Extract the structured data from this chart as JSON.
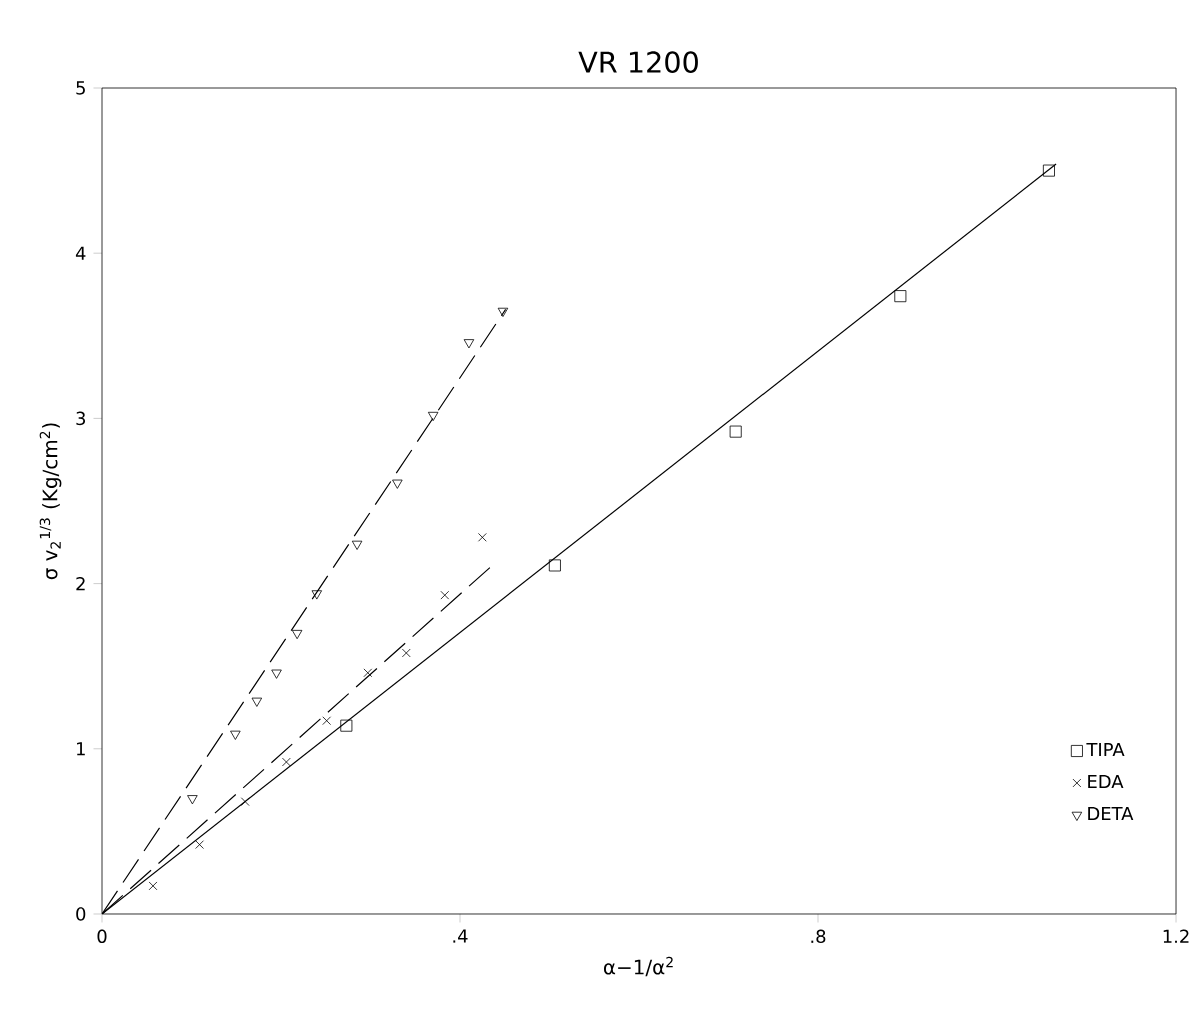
{
  "chart_data": {
    "type": "scatter",
    "title": "VR 1200",
    "xlabel": "α−1/α$^{2}$",
    "ylabel": "σ v$_{2}$$^{1/3}$   (Kg/cm$^{2}$)",
    "xlim": [
      0,
      1.2
    ],
    "ylim": [
      0,
      5
    ],
    "xticks": [
      0,
      {
        "value": 0.4,
        "label": ".4"
      },
      {
        "value": 0.8,
        "label": ".8"
      },
      1.2
    ],
    "yticks": [
      0,
      1,
      2,
      3,
      4,
      5
    ],
    "legend": "bottom right",
    "series": [
      {
        "name": "TIPA",
        "color": "#000000",
        "marker": "square",
        "x": [
          0.273,
          0.506,
          0.708,
          0.892,
          1.058
        ],
        "values": [
          1.14,
          2.11,
          2.92,
          3.74,
          4.5
        ]
      },
      {
        "name": "EDA",
        "color": "#000000",
        "marker": "cross",
        "x": [
          0.057,
          0.109,
          0.16,
          0.206,
          0.251,
          0.297,
          0.34,
          0.383,
          0.425
        ],
        "values": [
          0.17,
          0.42,
          0.68,
          0.92,
          1.17,
          1.46,
          1.58,
          1.93,
          2.28
        ]
      },
      {
        "name": "DETA",
        "color": "#000000",
        "marker": "triangle",
        "x": [
          0.101,
          0.149,
          0.173,
          0.195,
          0.218,
          0.24,
          0.285,
          0.33,
          0.37,
          0.41,
          0.448
        ],
        "values": [
          0.7,
          1.09,
          1.29,
          1.46,
          1.7,
          1.94,
          2.24,
          2.61,
          3.02,
          3.46,
          3.65
        ]
      },
      {
        "type": "line",
        "color": "#000000",
        "line_style": "solid",
        "x": [
          0,
          1.066
        ],
        "values": [
          0,
          4.54
        ]
      },
      {
        "type": "line",
        "color": "#000000",
        "line_style": "dashed",
        "x": [
          0,
          0.434
        ],
        "values": [
          0,
          2.1
        ]
      },
      {
        "type": "line",
        "color": "#000000",
        "line_style": "dashed",
        "x": [
          0,
          0.451
        ],
        "values": [
          0,
          3.66
        ]
      }
    ]
  }
}
